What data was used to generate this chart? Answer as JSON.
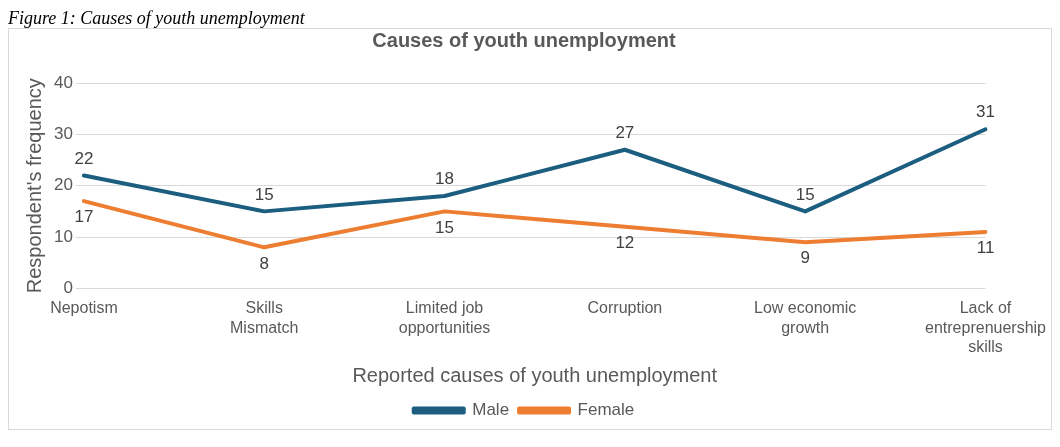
{
  "chart_data": {
    "type": "line",
    "title": "Causes of youth unemployment",
    "xlabel": "Reported causes of youth unemployment",
    "ylabel": "Respondent's frequency",
    "annotations": [
      "Figure 1: Causes of youth unemployment"
    ],
    "categories": [
      "Nepotism",
      "Skills Mismatch",
      "Limited job opportunities",
      "Corruption",
      "Low economic growth",
      "Lack of entreprenuership skills"
    ],
    "series": [
      {
        "name": "Male",
        "color": "#1b5e80",
        "values": [
          22,
          15,
          18,
          27,
          15,
          31
        ]
      },
      {
        "name": "Female",
        "color": "#ed7d31",
        "values": [
          17,
          8,
          15,
          12,
          9,
          11
        ]
      }
    ],
    "ylim": [
      0,
      40
    ],
    "yticks": [
      0,
      10,
      20,
      30,
      40
    ],
    "grid": "y",
    "legend": "bottom",
    "data_labels": true,
    "marker": "none",
    "line_style": "solid"
  }
}
